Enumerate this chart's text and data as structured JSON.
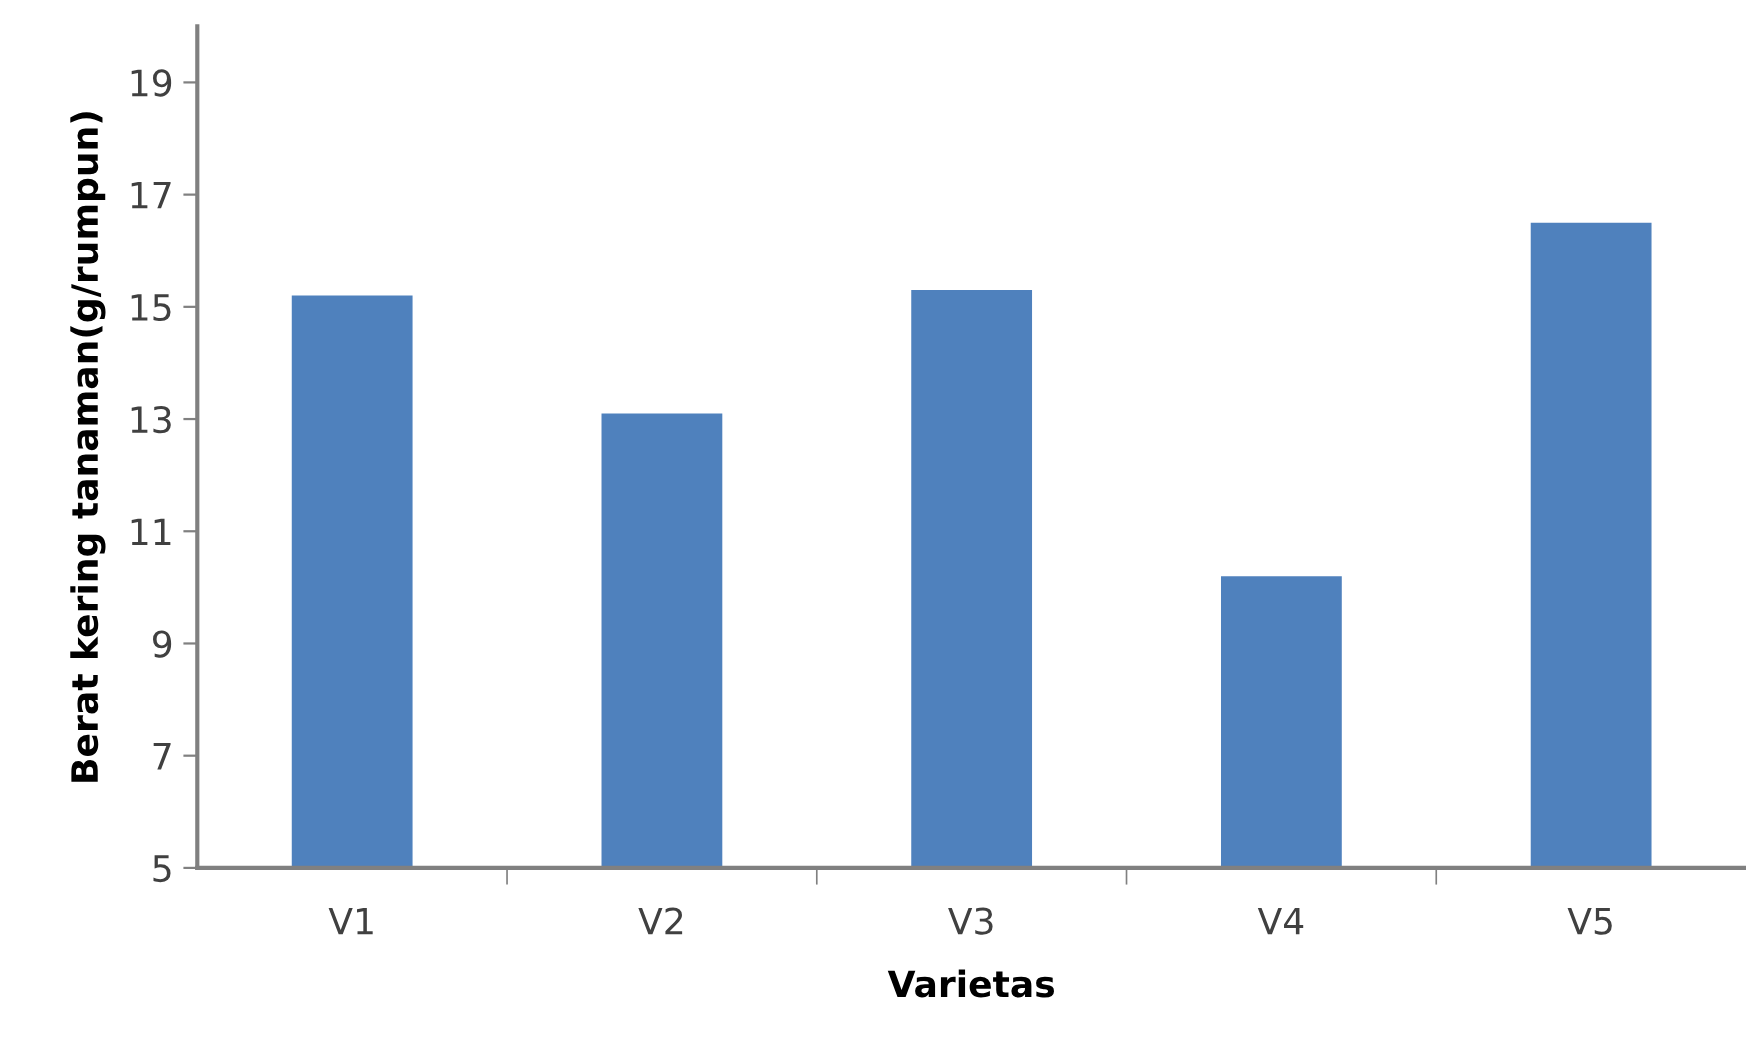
{
  "chart_data": {
    "type": "bar",
    "xlabel": "Varietas",
    "ylabel": "Berat kering tanaman(g/rumpun)",
    "categories": [
      "V1",
      "V2",
      "V3",
      "V4",
      "V5"
    ],
    "values": [
      15.2,
      13.1,
      15.3,
      10.2,
      16.5
    ],
    "color": "#4f81bd",
    "ylim": [
      5,
      20
    ],
    "yticks": [
      5,
      7,
      9,
      11,
      13,
      15,
      17,
      19
    ],
    "grid": false,
    "legend": false
  }
}
